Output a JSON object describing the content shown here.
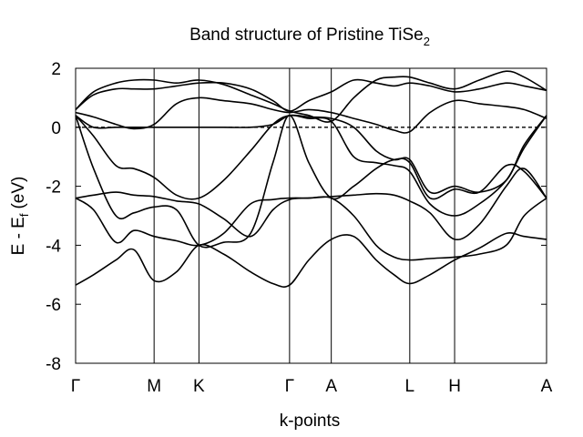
{
  "chart_data": {
    "type": "line",
    "title": "Band structure of Pristine TiSe",
    "title_subscript": "2",
    "xlabel": "k-points",
    "ylabel": "E - E",
    "ylabel_subscript": "f",
    "ylabel_unit": "(eV)",
    "xlim": [
      0,
      10.5
    ],
    "ylim": [
      -8,
      2
    ],
    "y_ticks": [
      2,
      0,
      -2,
      -4,
      -6,
      -8
    ],
    "k_points": [
      {
        "label": "Γ",
        "x": 0
      },
      {
        "label": "M",
        "x": 1.75
      },
      {
        "label": "K",
        "x": 2.75
      },
      {
        "label": "Γ",
        "x": 4.77
      },
      {
        "label": "A",
        "x": 5.7
      },
      {
        "label": "L",
        "x": 7.45
      },
      {
        "label": "H",
        "x": 8.45
      },
      {
        "label": "A",
        "x": 10.5
      }
    ],
    "fermi_level": 0,
    "grid": false,
    "legend": "none",
    "series": [
      {
        "x": [
          0,
          0.4,
          0.9,
          1.3,
          1.75,
          2.25,
          2.75,
          3.3,
          3.9,
          4.4,
          4.77,
          5.2,
          5.7,
          6.2,
          6.7,
          7.1,
          7.45,
          7.9,
          8.45,
          9,
          9.6,
          10,
          10.5
        ],
        "values": [
          -5.35,
          -5.0,
          -4.5,
          -4.15,
          -5.2,
          -4.9,
          -4.0,
          -4.3,
          -4.9,
          -5.3,
          -5.35,
          -4.5,
          -3.8,
          -3.7,
          -4.5,
          -5.0,
          -5.3,
          -5.0,
          -4.5,
          -4.1,
          -3.6,
          -3.7,
          -3.8
        ]
      },
      {
        "x": [
          0,
          0.4,
          0.9,
          1.3,
          1.75,
          2.25,
          2.75,
          3.3,
          3.9,
          4.4,
          4.77,
          5.2,
          5.7,
          6.2,
          6.7,
          7.1,
          7.45,
          7.9,
          8.45,
          9,
          9.6,
          10,
          10.5
        ],
        "values": [
          -2.4,
          -2.8,
          -3.9,
          -3.5,
          -3.7,
          -3.85,
          -4.0,
          -3.6,
          -2.6,
          -2.45,
          -2.4,
          -2.4,
          -2.4,
          -3.0,
          -4.0,
          -4.4,
          -4.5,
          -4.45,
          -4.4,
          -4.3,
          -4.0,
          -3.0,
          -2.4
        ]
      },
      {
        "x": [
          0,
          0.4,
          0.9,
          1.3,
          1.75,
          2.25,
          2.75,
          3.3,
          3.9,
          4.4,
          4.77,
          5.2,
          5.7,
          6.2,
          6.7,
          7.1,
          7.45,
          7.9,
          8.45,
          9,
          9.6,
          10,
          10.5
        ],
        "values": [
          -2.4,
          -2.3,
          -2.2,
          -2.3,
          -2.35,
          -2.5,
          -2.6,
          -3.1,
          -3.7,
          -2.8,
          -2.45,
          -2.4,
          -2.35,
          -2.3,
          -2.25,
          -2.3,
          -2.5,
          -2.9,
          -3.8,
          -3.3,
          -2.0,
          -1.4,
          -2.4
        ]
      },
      {
        "x": [
          0,
          0.4,
          0.9,
          1.3,
          1.75,
          2.25,
          2.75,
          3.3,
          3.9,
          4.4,
          4.77,
          5.2,
          5.7,
          6.2,
          6.7,
          7.1,
          7.45,
          7.9,
          8.45,
          9,
          9.6,
          10,
          10.5
        ],
        "values": [
          0.4,
          -1.4,
          -3.0,
          -2.9,
          -2.7,
          -2.8,
          -4.0,
          -3.9,
          -3.6,
          -1.2,
          0.4,
          -1.2,
          -2.4,
          -2.0,
          -1.4,
          -1.1,
          -1.2,
          -2.4,
          -2.1,
          -2.2,
          -1.3,
          -1.5,
          -2.4
        ]
      },
      {
        "x": [
          0,
          0.4,
          0.9,
          1.3,
          1.75,
          2.25,
          2.75,
          3.3,
          3.9,
          4.4,
          4.77,
          5.2,
          5.7,
          6.2,
          6.7,
          7.1,
          7.45,
          7.9,
          8.45,
          9,
          9.6,
          10,
          10.5
        ],
        "values": [
          0.4,
          -0.3,
          -1.3,
          -1.4,
          -1.7,
          -2.3,
          -2.4,
          -1.8,
          -0.8,
          0.1,
          0.4,
          0.3,
          0.2,
          -1.0,
          -1.2,
          -1.3,
          -1.5,
          -2.6,
          -3.0,
          -2.6,
          -1.8,
          -0.7,
          0.4
        ]
      },
      {
        "x": [
          0,
          0.4,
          0.9,
          1.3,
          1.75,
          2.25,
          2.75,
          3.3,
          3.9,
          4.4,
          4.77,
          5.2,
          5.7,
          6.2,
          6.7,
          7.1,
          7.45,
          7.9,
          8.45,
          9,
          9.6,
          10,
          10.5
        ],
        "values": [
          0.4,
          0.0,
          0.0,
          0.0,
          0.0,
          0.0,
          0.0,
          0.0,
          0.0,
          0.1,
          0.4,
          0.35,
          0.3,
          0.0,
          -0.8,
          -1.1,
          -1.1,
          -2.2,
          -2.0,
          -2.2,
          -1.8,
          -0.6,
          0.4
        ]
      },
      {
        "x": [
          0,
          0.4,
          0.9,
          1.3,
          1.75,
          2.25,
          2.75,
          3.3,
          3.9,
          4.4,
          4.77,
          5.2,
          5.7,
          6.2,
          6.7,
          7.1,
          7.45,
          7.9,
          8.45,
          9,
          9.6,
          10,
          10.5
        ],
        "values": [
          0.5,
          0.35,
          0.1,
          -0.05,
          0.1,
          0.8,
          1.0,
          0.9,
          0.8,
          0.6,
          0.5,
          0.6,
          0.5,
          0.3,
          0.1,
          -0.1,
          -0.15,
          0.5,
          0.9,
          0.8,
          0.7,
          0.6,
          0.3
        ]
      },
      {
        "x": [
          0,
          0.4,
          0.9,
          1.3,
          1.75,
          2.25,
          2.75,
          3.3,
          3.9,
          4.4,
          4.77,
          5.2,
          5.7,
          6.2,
          6.7,
          7.1,
          7.45,
          7.9,
          8.45,
          9,
          9.6,
          10,
          10.5
        ],
        "values": [
          0.6,
          1.1,
          1.3,
          1.3,
          1.3,
          1.4,
          1.5,
          1.5,
          1.3,
          0.9,
          0.55,
          0.9,
          1.2,
          1.6,
          1.5,
          1.4,
          1.5,
          1.4,
          1.2,
          1.3,
          1.5,
          1.4,
          1.25
        ]
      },
      {
        "x": [
          0,
          0.4,
          0.9,
          1.3,
          1.75,
          2.25,
          2.75,
          3.3,
          3.9,
          4.4,
          4.77,
          5.2,
          5.7,
          6.2,
          6.7,
          7.1,
          7.45,
          7.9,
          8.45,
          9,
          9.6,
          10,
          10.5
        ],
        "values": [
          0.6,
          1.2,
          1.5,
          1.6,
          1.6,
          1.5,
          1.6,
          1.45,
          1.1,
          0.8,
          0.55,
          0.4,
          0.2,
          1.0,
          1.6,
          1.7,
          1.7,
          1.5,
          1.3,
          1.6,
          1.9,
          1.7,
          1.25
        ]
      }
    ]
  }
}
